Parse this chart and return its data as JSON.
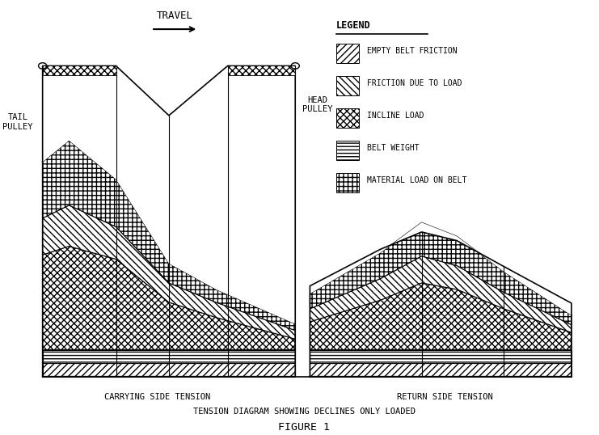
{
  "title": "TENSION DIAGRAM SHOWING DECLINES ONLY LOADED",
  "figure_label": "FIGURE 1",
  "carrying_side_label": "CARRYING SIDE TENSION",
  "return_side_label": "RETURN SIDE TENSION",
  "travel_label": "TRAVEL",
  "tail_pulley_label": "TAIL\nPULLEY",
  "head_pulley_label": "HEAD\nPULLEY",
  "legend_title": "LEGEND",
  "legend_items": [
    {
      "label": "EMPTY BELT FRICTION"
    },
    {
      "label": "FRICTION DUE TO LOAD"
    },
    {
      "label": "INCLINE LOAD"
    },
    {
      "label": "BELT WEIGHT"
    },
    {
      "label": "MATERIAL LOAD ON BELT"
    }
  ],
  "bg_color": "white",
  "line_color": "black",
  "font_color": "black"
}
